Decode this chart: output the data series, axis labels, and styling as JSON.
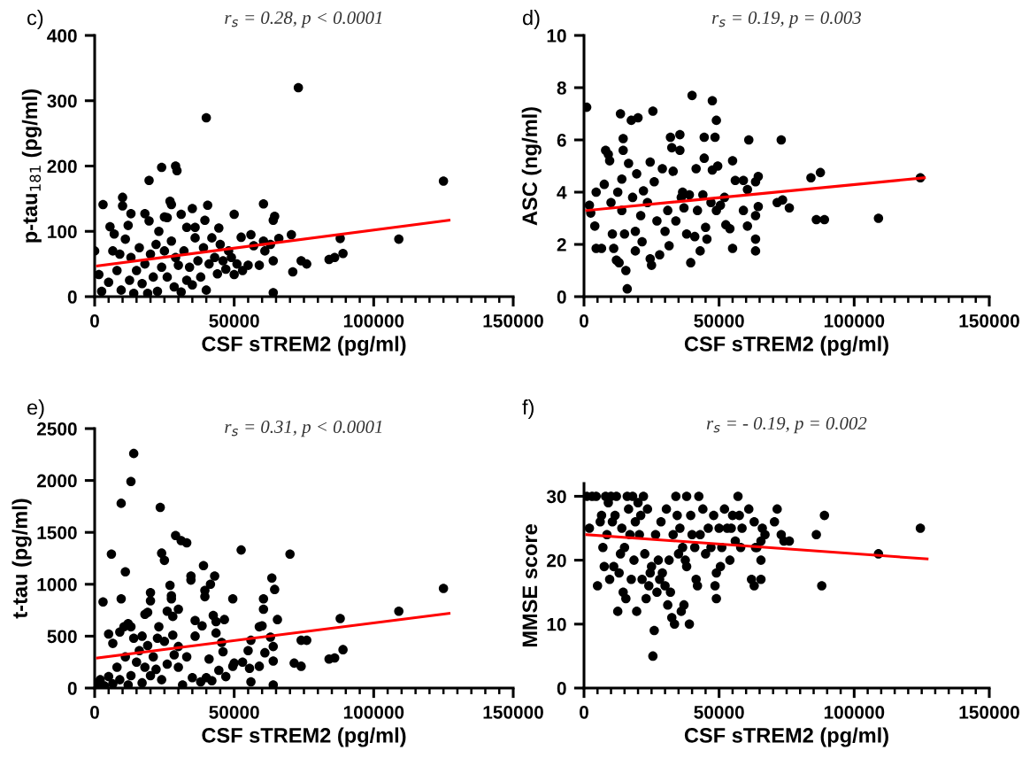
{
  "chart_data": [
    {
      "type": "scatter",
      "title": "r$_{s}$ = 0.28, p < 0.0001",
      "xlabel": "CSF sTREM2 (pg/ml)",
      "ylabel": "p-tau$_{181}$ (pg/ml)",
      "annotations": [
        "c)"
      ],
      "grid": false,
      "xlim": [
        0,
        150000
      ],
      "ylim": [
        0,
        400
      ],
      "yticks": [
        0,
        100,
        200,
        300,
        400
      ],
      "xticks": [
        0,
        {
          "value": 5000,
          "label": null
        },
        {
          "value": 10000,
          "label": null
        },
        {
          "value": 15000,
          "label": null
        },
        {
          "value": 20000,
          "label": null
        },
        {
          "value": 25000,
          "label": null
        },
        {
          "value": 30000,
          "label": null
        },
        {
          "value": 35000,
          "label": null
        },
        {
          "value": 40000,
          "label": null
        },
        {
          "value": 45000,
          "label": null
        },
        50000,
        {
          "value": 55000,
          "label": null
        },
        {
          "value": 60000,
          "label": null
        },
        {
          "value": 65000,
          "label": null
        },
        {
          "value": 70000,
          "label": null
        },
        {
          "value": 75000,
          "label": null
        },
        {
          "value": 80000,
          "label": null
        },
        {
          "value": 85000,
          "label": null
        },
        {
          "value": 90000,
          "label": null
        },
        {
          "value": 95000,
          "label": null
        },
        100000,
        {
          "value": 105000,
          "label": null
        },
        {
          "value": 110000,
          "label": null
        },
        {
          "value": 115000,
          "label": null
        },
        {
          "value": 120000,
          "label": null
        },
        {
          "value": 125000,
          "label": null
        },
        {
          "value": 130000,
          "label": null
        },
        {
          "value": 135000,
          "label": null
        },
        {
          "value": 140000,
          "label": null
        },
        {
          "value": 145000,
          "label": null
        },
        150000
      ],
      "series": [
        {
          "marker": "circle",
          "color": "#000000",
          "x": [
            73000,
            40000,
            125000,
            24000,
            29000,
            29500,
            19500,
            10000,
            3000,
            40500,
            60500,
            35000,
            27000,
            27500,
            10000,
            13000,
            18000,
            31000,
            50000,
            25000,
            26000,
            64500,
            64000,
            39500,
            19500,
            5500,
            12000,
            33000,
            36000,
            44500,
            70500,
            56000,
            52500,
            88000,
            109000,
            66000,
            60500,
            0,
            1500,
            2500,
            5000,
            6500,
            7000,
            9000,
            8000,
            9500,
            11000,
            12500,
            13000,
            14000,
            15000,
            16000,
            17000,
            18000,
            19000,
            20000,
            21000,
            22000,
            22500,
            23000,
            24000,
            25000,
            26000,
            27500,
            28500,
            29000,
            30000,
            31000,
            32000,
            33000,
            34000,
            35000,
            36000,
            37000,
            38000,
            39000,
            40000,
            41000,
            42000,
            43000,
            44000,
            45000,
            46000,
            47000,
            48000,
            49000,
            50000,
            51000,
            53000,
            55000,
            57000,
            59000,
            61000,
            63000,
            64000,
            64000,
            71000,
            74000,
            76000,
            84000,
            86000,
            89000
          ],
          "values": [
            320,
            274,
            177,
            198,
            200,
            193,
            178,
            152,
            141,
            140,
            142,
            135,
            146,
            141,
            139,
            127,
            127,
            126,
            126,
            122,
            121,
            123,
            117,
            117,
            116,
            107,
            109,
            106,
            106,
            105,
            95,
            95,
            91,
            89,
            88,
            89,
            85,
            70,
            34,
            8,
            22,
            70,
            96,
            65,
            40,
            10,
            88,
            25,
            60,
            5,
            40,
            75,
            20,
            50,
            5,
            65,
            30,
            80,
            8,
            100,
            45,
            70,
            30,
            85,
            15,
            60,
            48,
            7,
            70,
            25,
            45,
            18,
            90,
            55,
            30,
            75,
            10,
            50,
            90,
            60,
            35,
            80,
            55,
            42,
            70,
            60,
            34,
            50,
            40,
            48,
            78,
            48,
            70,
            80,
            55,
            6,
            38,
            55,
            50,
            57,
            60,
            66
          ]
        },
        {
          "type": "line",
          "color": "#ff0000",
          "x": [
            1000,
            127000
          ],
          "values": [
            47,
            117
          ]
        }
      ]
    },
    {
      "type": "scatter",
      "title": "r$_{s}$ = 0.19, p = 0.003",
      "xlabel": "CSF sTREM2 (pg/ml)",
      "ylabel": "ASC (ng/ml)",
      "annotations": [
        "d)"
      ],
      "grid": false,
      "xlim": [
        0,
        150000
      ],
      "ylim": [
        0,
        10
      ],
      "yticks": [
        0,
        2,
        4,
        6,
        8,
        10
      ],
      "xticks": [
        0,
        {
          "value": 5000,
          "label": null
        },
        {
          "value": 10000,
          "label": null
        },
        {
          "value": 15000,
          "label": null
        },
        {
          "value": 20000,
          "label": null
        },
        {
          "value": 25000,
          "label": null
        },
        {
          "value": 30000,
          "label": null
        },
        {
          "value": 35000,
          "label": null
        },
        {
          "value": 40000,
          "label": null
        },
        {
          "value": 45000,
          "label": null
        },
        50000,
        {
          "value": 55000,
          "label": null
        },
        {
          "value": 60000,
          "label": null
        },
        {
          "value": 65000,
          "label": null
        },
        {
          "value": 70000,
          "label": null
        },
        {
          "value": 75000,
          "label": null
        },
        {
          "value": 80000,
          "label": null
        },
        {
          "value": 85000,
          "label": null
        },
        {
          "value": 90000,
          "label": null
        },
        {
          "value": 95000,
          "label": null
        },
        100000,
        {
          "value": 105000,
          "label": null
        },
        {
          "value": 110000,
          "label": null
        },
        {
          "value": 115000,
          "label": null
        },
        {
          "value": 120000,
          "label": null
        },
        {
          "value": 125000,
          "label": null
        },
        {
          "value": 130000,
          "label": null
        },
        {
          "value": 135000,
          "label": null
        },
        {
          "value": 140000,
          "label": null
        },
        {
          "value": 145000,
          "label": null
        },
        150000
      ],
      "series": [
        {
          "marker": "circle",
          "color": "#000000",
          "x": [
            1000,
            2000,
            2500,
            4000,
            4500,
            4500,
            6500,
            7500,
            8000,
            9000,
            9500,
            10000,
            10500,
            11000,
            12000,
            12500,
            13000,
            14000,
            14500,
            14500,
            15000,
            15500,
            16000,
            14000,
            13500,
            16500,
            17500,
            18000,
            19000,
            19000,
            19500,
            20000,
            21000,
            21500,
            22000,
            23500,
            24500,
            24500,
            25000,
            25500,
            26000,
            27000,
            28000,
            29000,
            30000,
            31000,
            31500,
            32000,
            32500,
            33000,
            34000,
            35500,
            35500,
            36000,
            36500,
            37000,
            38000,
            39000,
            41000,
            41500,
            42000,
            39500,
            40000,
            43000,
            44000,
            44500,
            44500,
            45000,
            45500,
            47000,
            47500,
            47500,
            48500,
            49000,
            49500,
            49000,
            50500,
            52000,
            52500,
            54000,
            55000,
            55000,
            56000,
            59000,
            59000,
            60500,
            60500,
            61000,
            63500,
            63500,
            63500,
            63500,
            64500,
            64500,
            71500,
            73000,
            73500,
            76000,
            84000,
            86000,
            87500,
            89000,
            109000,
            124500
          ],
          "values": [
            7.25,
            3.5,
            3.2,
            2.7,
            1.85,
            4.0,
            1.85,
            4.3,
            5.6,
            5.45,
            5.2,
            3.6,
            2.4,
            1.85,
            1.4,
            4.0,
            1.3,
            4.5,
            6.05,
            5.6,
            2.4,
            1.0,
            0.3,
            3.3,
            7.0,
            5.1,
            6.75,
            3.8,
            1.75,
            2.5,
            4.7,
            6.85,
            3.1,
            2.1,
            4.05,
            3.6,
            5.15,
            1.45,
            1.2,
            7.1,
            4.4,
            2.9,
            1.6,
            4.9,
            2.5,
            3.3,
            1.95,
            6.1,
            5.7,
            4.8,
            2.9,
            6.2,
            5.6,
            3.8,
            4.0,
            3.4,
            2.4,
            3.9,
            2.3,
            4.9,
            3.3,
            1.3,
            7.7,
            1.75,
            3.9,
            5.3,
            6.1,
            2.65,
            2.2,
            3.6,
            4.85,
            7.5,
            6.1,
            6.75,
            5.0,
            3.3,
            3.5,
            3.8,
            2.75,
            2.6,
            1.85,
            5.2,
            4.45,
            4.45,
            3.3,
            4.1,
            2.7,
            6.0,
            4.4,
            3.1,
            2.2,
            1.75,
            4.6,
            3.45,
            3.6,
            6.0,
            3.7,
            3.4,
            4.55,
            2.95,
            4.75,
            2.95,
            3.0,
            4.55
          ]
        },
        {
          "type": "line",
          "color": "#ff0000",
          "x": [
            1000,
            126000
          ],
          "values": [
            3.3,
            4.55
          ]
        }
      ]
    },
    {
      "type": "scatter",
      "title": "r$_{s}$ = 0.31, p < 0.0001",
      "xlabel": "CSF sTREM2 (pg/ml)",
      "ylabel": "t-tau (pg/ml)",
      "annotations": [
        "e)"
      ],
      "grid": false,
      "xlim": [
        0,
        150000
      ],
      "ylim": [
        0,
        2500
      ],
      "yticks": [
        0,
        500,
        1000,
        1500,
        2000,
        2500
      ],
      "xticks": [
        0,
        {
          "value": 5000,
          "label": null
        },
        {
          "value": 10000,
          "label": null
        },
        {
          "value": 15000,
          "label": null
        },
        {
          "value": 20000,
          "label": null
        },
        {
          "value": 25000,
          "label": null
        },
        {
          "value": 30000,
          "label": null
        },
        {
          "value": 35000,
          "label": null
        },
        {
          "value": 40000,
          "label": null
        },
        {
          "value": 45000,
          "label": null
        },
        50000,
        {
          "value": 55000,
          "label": null
        },
        {
          "value": 60000,
          "label": null
        },
        {
          "value": 65000,
          "label": null
        },
        {
          "value": 70000,
          "label": null
        },
        {
          "value": 75000,
          "label": null
        },
        {
          "value": 80000,
          "label": null
        },
        {
          "value": 85000,
          "label": null
        },
        {
          "value": 90000,
          "label": null
        },
        {
          "value": 95000,
          "label": null
        },
        100000,
        {
          "value": 105000,
          "label": null
        },
        {
          "value": 110000,
          "label": null
        },
        {
          "value": 115000,
          "label": null
        },
        {
          "value": 120000,
          "label": null
        },
        {
          "value": 125000,
          "label": null
        },
        {
          "value": 130000,
          "label": null
        },
        {
          "value": 135000,
          "label": null
        },
        {
          "value": 140000,
          "label": null
        },
        {
          "value": 145000,
          "label": null
        },
        150000
      ],
      "series": [
        {
          "marker": "circle",
          "color": "#000000",
          "x": [
            14000,
            13000,
            9500,
            23500,
            29000,
            31000,
            33000,
            24000,
            25000,
            6000,
            52500,
            70000,
            39000,
            11000,
            34500,
            34500,
            43000,
            41500,
            63500,
            64500,
            27000,
            20000,
            39500,
            39500,
            27500,
            27500,
            49500,
            60500,
            3000,
            9500,
            20000,
            125000,
            30000,
            60500,
            26000,
            19000,
            18000,
            42500,
            43500,
            28000,
            46500,
            65500,
            88000,
            109000,
            10500,
            12000,
            13000,
            23000,
            36000,
            38500,
            60000,
            59000,
            5000,
            6500,
            9000,
            14000,
            17000,
            19000,
            22500,
            25000,
            28000,
            30000,
            36000,
            43500,
            45500,
            56000,
            63000,
            74000,
            76000,
            89000,
            86000,
            84000,
            71500,
            74000,
            64000,
            61000,
            55000,
            55500,
            59000,
            64000,
            56000,
            64000,
            49500,
            47000,
            44500,
            42000,
            40000,
            38000,
            35000,
            31500,
            30000,
            33000,
            26000,
            24000,
            21000,
            20000,
            18000,
            17000,
            15000,
            13000,
            12000,
            11000,
            9000,
            8000,
            6500,
            5000,
            3500,
            2000,
            1000,
            16000,
            22000,
            28500,
            41000,
            46000,
            50000,
            53000
          ],
          "values": [
            2260,
            1990,
            1780,
            1740,
            1470,
            1420,
            1400,
            1300,
            1230,
            1290,
            1330,
            1290,
            1180,
            1120,
            1080,
            1040,
            1080,
            1000,
            1060,
            950,
            990,
            920,
            940,
            880,
            890,
            860,
            860,
            860,
            830,
            860,
            840,
            960,
            760,
            760,
            740,
            730,
            710,
            700,
            640,
            690,
            660,
            660,
            670,
            740,
            590,
            620,
            590,
            590,
            650,
            600,
            600,
            590,
            520,
            430,
            540,
            480,
            500,
            410,
            480,
            450,
            510,
            400,
            500,
            530,
            440,
            460,
            490,
            460,
            460,
            370,
            290,
            280,
            240,
            210,
            400,
            340,
            360,
            190,
            210,
            260,
            60,
            30,
            210,
            110,
            170,
            70,
            100,
            60,
            100,
            30,
            200,
            300,
            230,
            80,
            300,
            120,
            200,
            50,
            250,
            120,
            30,
            300,
            80,
            200,
            40,
            110,
            20,
            80,
            50,
            360,
            180,
            320,
            280,
            350,
            240,
            250
          ]
        },
        {
          "type": "line",
          "color": "#ff0000",
          "x": [
            1000,
            127000
          ],
          "values": [
            290,
            720
          ]
        }
      ]
    },
    {
      "type": "scatter",
      "title": "r$_{s}$ = - 0.19, p = 0.002",
      "xlabel": "CSF sTREM2 (pg/ml)",
      "ylabel": "MMSE score",
      "annotations": [
        "f)"
      ],
      "grid": false,
      "xlim": [
        0,
        150000
      ],
      "ylim": [
        0,
        32
      ],
      "yticks": [
        0,
        10,
        20,
        30
      ],
      "xticks": [
        0,
        {
          "value": 5000,
          "label": null
        },
        {
          "value": 10000,
          "label": null
        },
        {
          "value": 15000,
          "label": null
        },
        {
          "value": 20000,
          "label": null
        },
        {
          "value": 25000,
          "label": null
        },
        {
          "value": 30000,
          "label": null
        },
        {
          "value": 35000,
          "label": null
        },
        {
          "value": 40000,
          "label": null
        },
        {
          "value": 45000,
          "label": null
        },
        50000,
        {
          "value": 55000,
          "label": null
        },
        {
          "value": 60000,
          "label": null
        },
        {
          "value": 65000,
          "label": null
        },
        {
          "value": 70000,
          "label": null
        },
        {
          "value": 75000,
          "label": null
        },
        {
          "value": 80000,
          "label": null
        },
        {
          "value": 85000,
          "label": null
        },
        {
          "value": 90000,
          "label": null
        },
        {
          "value": 95000,
          "label": null
        },
        100000,
        {
          "value": 105000,
          "label": null
        },
        {
          "value": 110000,
          "label": null
        },
        {
          "value": 115000,
          "label": null
        },
        {
          "value": 120000,
          "label": null
        },
        {
          "value": 125000,
          "label": null
        },
        {
          "value": 130000,
          "label": null
        },
        {
          "value": 135000,
          "label": null
        },
        {
          "value": 140000,
          "label": null
        },
        {
          "value": 145000,
          "label": null
        },
        150000
      ],
      "series": [
        {
          "marker": "circle",
          "color": "#000000",
          "x": [
            1000,
            2000,
            3000,
            4500,
            5000,
            6000,
            6500,
            7000,
            7500,
            8000,
            8500,
            9000,
            9500,
            10000,
            10500,
            11000,
            11500,
            12000,
            12500,
            13000,
            13500,
            14000,
            14500,
            15000,
            15500,
            16000,
            16500,
            17000,
            17500,
            18000,
            18500,
            19000,
            19500,
            20000,
            20500,
            21000,
            21500,
            22000,
            22500,
            23000,
            23500,
            24000,
            24500,
            25000,
            25500,
            26000,
            26500,
            27000,
            27500,
            28000,
            28500,
            29000,
            30000,
            30500,
            31000,
            31500,
            32000,
            32500,
            33000,
            33500,
            34000,
            34500,
            35000,
            35500,
            36000,
            36500,
            37000,
            37500,
            38000,
            38000,
            39000,
            39500,
            40000,
            41000,
            41500,
            42000,
            42500,
            43000,
            44000,
            45000,
            46000,
            47000,
            48000,
            48500,
            49000,
            49000,
            50000,
            50500,
            51000,
            52000,
            53000,
            54000,
            55000,
            54500,
            56000,
            57000,
            57500,
            58000,
            58500,
            61000,
            62000,
            63000,
            63000,
            63500,
            65500,
            65500,
            65500,
            64000,
            66000,
            67000,
            70500,
            71500,
            73000,
            74000,
            76000,
            86000,
            88000,
            89000,
            109000,
            124500
          ],
          "values": [
            30,
            25,
            30,
            30,
            16,
            26,
            27,
            22,
            19,
            30,
            24,
            29,
            17,
            30,
            26,
            19,
            27,
            30,
            12,
            18,
            21,
            25,
            15,
            22,
            14,
            30,
            28,
            24,
            17,
            30,
            20,
            26,
            12,
            29,
            24,
            27,
            17,
            30,
            21,
            14,
            28,
            16,
            18,
            19,
            5,
            9,
            24,
            15,
            20,
            17,
            26,
            18,
            16,
            28,
            13,
            20,
            15,
            11,
            24,
            10,
            30,
            27,
            21,
            25,
            12,
            22,
            13,
            20,
            19,
            30,
            10,
            27,
            24,
            22,
            17,
            16,
            30,
            24,
            28,
            21,
            25,
            22,
            27,
            16,
            18,
            14,
            25,
            19,
            22,
            28,
            25,
            20,
            27,
            25,
            23,
            30,
            27,
            22,
            25,
            28,
            17,
            16,
            26,
            22,
            20,
            23,
            17,
            22,
            25,
            24,
            26,
            28,
            24,
            23,
            23,
            24,
            16,
            27,
            21,
            25
          ]
        },
        {
          "type": "line",
          "color": "#ff0000",
          "x": [
            1000,
            127000
          ],
          "values": [
            24,
            20.2
          ]
        }
      ]
    }
  ]
}
